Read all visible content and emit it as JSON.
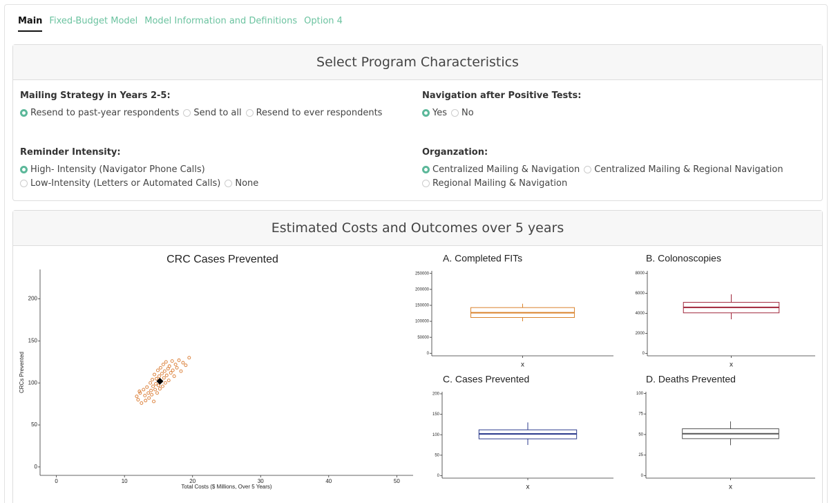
{
  "tabs": {
    "items": [
      "Main",
      "Fixed-Budget Model",
      "Model Information and Definitions",
      "Option 4"
    ],
    "active": 0
  },
  "program_panel": {
    "title": "Select Program Characteristics",
    "groups": [
      {
        "label": "Mailing Strategy in Years 2-5:",
        "options": [
          "Resend to past-year respondents",
          "Send to all",
          "Resend to ever respondents"
        ],
        "selected": 0
      },
      {
        "label": "Navigation after Positive Tests:",
        "options": [
          "Yes",
          "No"
        ],
        "selected": 0
      },
      {
        "label": "Reminder Intensity:",
        "options": [
          "High- Intensity (Navigator Phone Calls)",
          "Low-Intensity (Letters or Automated Calls)",
          "None"
        ],
        "selected": 0
      },
      {
        "label": "Organzation:",
        "options": [
          "Centralized Mailing & Navigation",
          "Centralized Mailing & Regional Navigation",
          "Regional Mailing & Navigation"
        ],
        "selected": 0
      }
    ]
  },
  "results_panel": {
    "title": "Estimated Costs and Outcomes over 5 years"
  },
  "chart_data": [
    {
      "type": "scatter",
      "title": "CRC Cases Prevented",
      "x_label": "Total Costs ($ Millions, Over 5 Years)",
      "y_label": "CRCs Prevented",
      "x": [
        12.0,
        12.3,
        12.5,
        12.8,
        13.0,
        13.1,
        13.3,
        13.5,
        13.6,
        13.8,
        13.9,
        14.0,
        14.1,
        14.2,
        14.3,
        14.4,
        14.5,
        14.6,
        14.7,
        14.8,
        14.9,
        15.0,
        15.1,
        15.2,
        15.3,
        15.4,
        15.5,
        15.6,
        15.7,
        15.8,
        15.9,
        16.0,
        16.1,
        16.2,
        16.4,
        16.5,
        16.6,
        16.8,
        17.0,
        17.1,
        17.3,
        17.5,
        17.7,
        18.0,
        18.3,
        18.6,
        19.0,
        19.5,
        11.8,
        12.2
      ],
      "values": [
        80,
        88,
        76,
        92,
        85,
        79,
        95,
        88,
        82,
        100,
        91,
        86,
        104,
        96,
        78,
        110,
        92,
        99,
        105,
        88,
        115,
        97,
        108,
        93,
        118,
        102,
        111,
        96,
        122,
        106,
        114,
        100,
        125,
        109,
        117,
        103,
        120,
        112,
        126,
        115,
        108,
        122,
        118,
        127,
        114,
        124,
        121,
        130,
        84,
        90
      ],
      "color": "#d9782d",
      "highlight": {
        "x": 15.2,
        "y": 102
      },
      "highlight_color": "#000000",
      "xlim": [
        -2.4,
        52.4
      ],
      "xticks": [
        0,
        10,
        20,
        30,
        40,
        50
      ],
      "ylim": [
        -10,
        235
      ],
      "yticks": [
        0,
        50,
        100,
        150,
        200
      ]
    },
    {
      "type": "box",
      "title": "A. Completed FITs",
      "categories": [
        "x"
      ],
      "whislo": [
        100000
      ],
      "q1": [
        112000
      ],
      "median": [
        127000
      ],
      "q3": [
        143000
      ],
      "whishi": [
        155000
      ],
      "color": "#d9822b",
      "ylim": [
        -8000,
        258000
      ],
      "yticks": [
        0,
        50000,
        100000,
        150000,
        200000,
        250000
      ]
    },
    {
      "type": "box",
      "title": "B. Colonoscopies",
      "categories": [
        "x"
      ],
      "whislo": [
        3400
      ],
      "q1": [
        4050
      ],
      "median": [
        4600
      ],
      "q3": [
        5100
      ],
      "whishi": [
        5900
      ],
      "color": "#a0253a",
      "ylim": [
        -250,
        8250
      ],
      "yticks": [
        0,
        2000,
        4000,
        6000,
        8000
      ]
    },
    {
      "type": "box",
      "title": "C. Cases Prevented",
      "categories": [
        "x"
      ],
      "whislo": [
        75
      ],
      "q1": [
        90
      ],
      "median": [
        102
      ],
      "q3": [
        112
      ],
      "whishi": [
        130
      ],
      "color": "#2b3a8c",
      "ylim": [
        -6,
        205
      ],
      "yticks": [
        0,
        50,
        100,
        150,
        200
      ]
    },
    {
      "type": "box",
      "title": "D. Deaths Prevented",
      "categories": [
        "x"
      ],
      "whislo": [
        37
      ],
      "q1": [
        45
      ],
      "median": [
        51
      ],
      "q3": [
        57
      ],
      "whishi": [
        66
      ],
      "color": "#555555",
      "ylim": [
        -3,
        102
      ],
      "yticks": [
        0,
        25,
        50,
        75,
        100
      ]
    }
  ]
}
